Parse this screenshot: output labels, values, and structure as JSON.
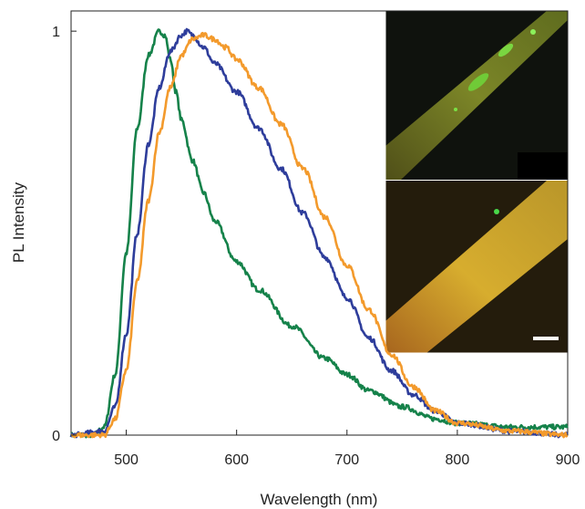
{
  "chart_data": {
    "type": "line",
    "title": "",
    "xlabel": "Wavelength (nm)",
    "ylabel": "PL Intensity",
    "xlim": [
      450,
      900
    ],
    "ylim": [
      0,
      1.05
    ],
    "x_ticks": [
      500,
      600,
      700,
      800,
      900
    ],
    "y_ticks": [
      0,
      1
    ],
    "y_tick_labels": [
      "0",
      "1"
    ],
    "grid": false,
    "legend": "none",
    "series": [
      {
        "color": "#15824a",
        "x": [
          450,
          470,
          480,
          490,
          500,
          510,
          520,
          530,
          535,
          540,
          545,
          550,
          560,
          570,
          580,
          600,
          620,
          650,
          680,
          700,
          720,
          750,
          780,
          800,
          850,
          900
        ],
        "y": [
          0.0,
          0.0,
          0.02,
          0.15,
          0.45,
          0.76,
          0.94,
          1.0,
          0.99,
          0.93,
          0.85,
          0.78,
          0.68,
          0.6,
          0.53,
          0.43,
          0.36,
          0.27,
          0.19,
          0.15,
          0.11,
          0.07,
          0.04,
          0.03,
          0.02,
          0.02
        ]
      },
      {
        "color": "#2e3d9b",
        "x": [
          450,
          480,
          490,
          500,
          510,
          520,
          530,
          540,
          550,
          555,
          560,
          570,
          580,
          600,
          620,
          640,
          660,
          680,
          700,
          720,
          740,
          760,
          780,
          800,
          850,
          900
        ],
        "y": [
          0.0,
          0.01,
          0.07,
          0.25,
          0.5,
          0.72,
          0.86,
          0.95,
          0.99,
          1.0,
          0.99,
          0.96,
          0.92,
          0.85,
          0.76,
          0.66,
          0.55,
          0.44,
          0.34,
          0.24,
          0.16,
          0.1,
          0.06,
          0.03,
          0.01,
          0.0
        ]
      },
      {
        "color": "#f39a2c",
        "x": [
          450,
          480,
          490,
          500,
          510,
          520,
          530,
          540,
          550,
          560,
          570,
          580,
          590,
          600,
          620,
          640,
          660,
          680,
          700,
          720,
          740,
          760,
          780,
          800,
          850,
          900
        ],
        "y": [
          0.0,
          0.0,
          0.04,
          0.16,
          0.38,
          0.58,
          0.75,
          0.86,
          0.94,
          0.98,
          0.99,
          0.98,
          0.96,
          0.93,
          0.86,
          0.77,
          0.66,
          0.54,
          0.42,
          0.31,
          0.2,
          0.12,
          0.06,
          0.03,
          0.01,
          0.0
        ]
      }
    ]
  }
}
